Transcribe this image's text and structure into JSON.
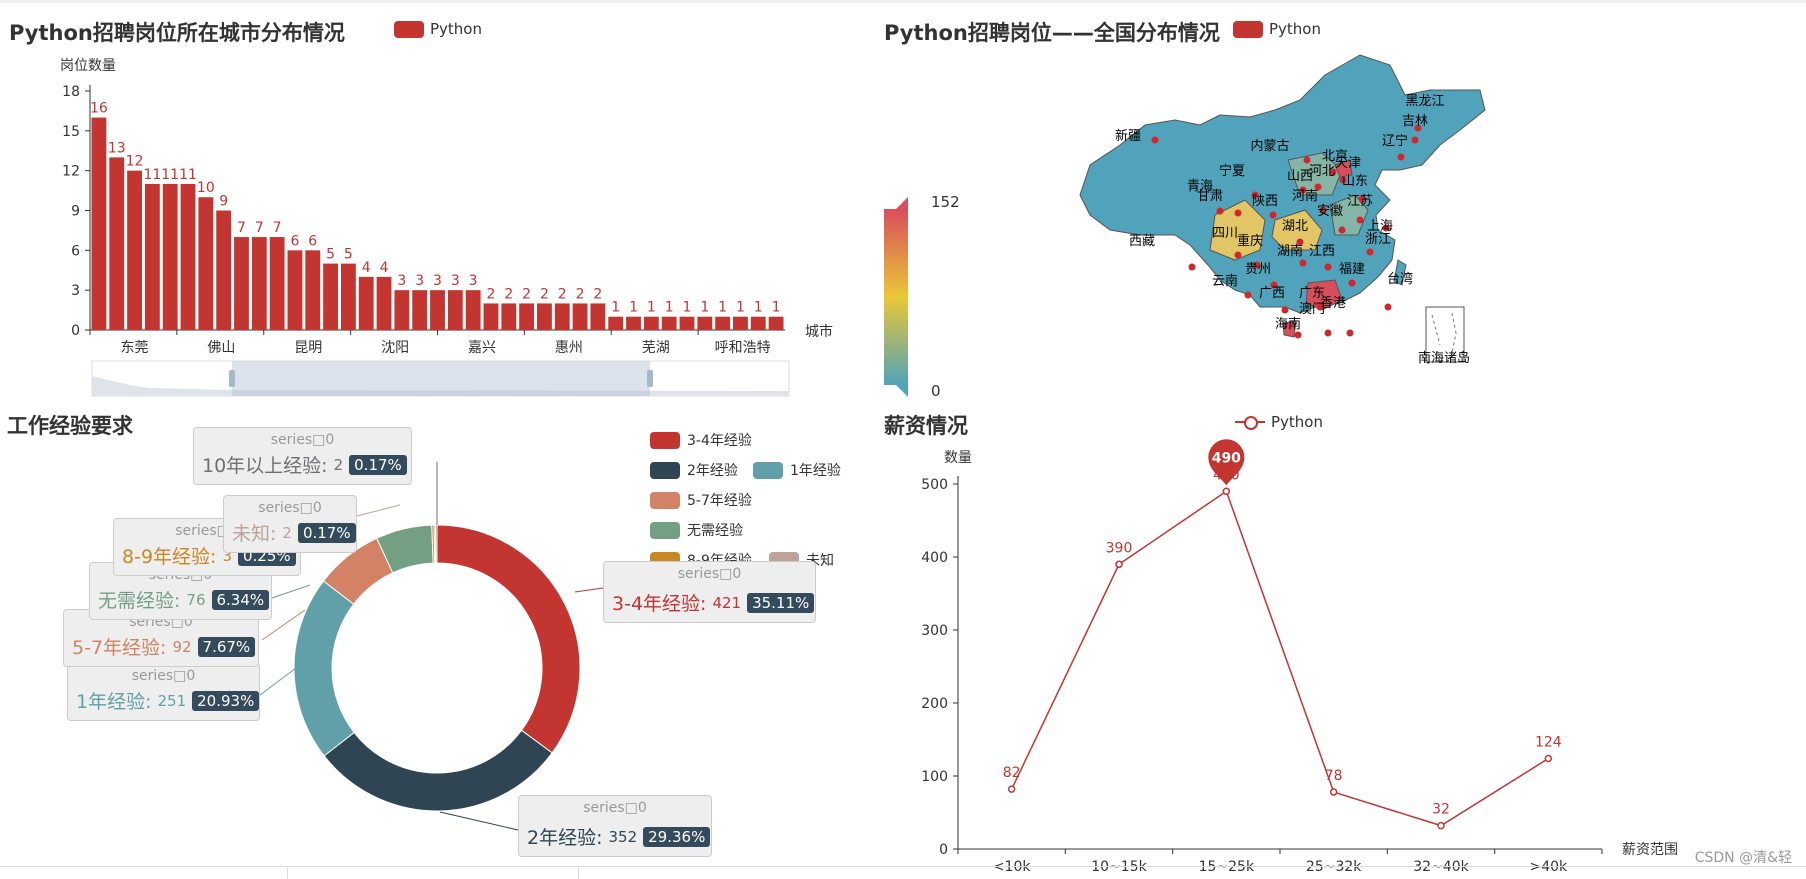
{
  "header": {},
  "charts": {
    "city_bar": {
      "title": "Python招聘岗位所在城市分布情况",
      "legend": "Python",
      "ylabel": "岗位数量",
      "xlabel": "城市"
    },
    "map": {
      "title": "Python招聘岗位——全国分布情况",
      "legend": "Python",
      "visual_max": "152",
      "visual_min": "0",
      "south_sea_label": "南海诸岛",
      "provinces": [
        "新疆",
        "西藏",
        "青海",
        "甘肃",
        "宁夏",
        "内蒙古",
        "黑龙江",
        "吉林",
        "辽宁",
        "北京",
        "天津",
        "河北",
        "山西",
        "山东",
        "陕西",
        "河南",
        "四川",
        "重庆",
        "湖北",
        "安徽",
        "江苏",
        "上海",
        "浙江",
        "湖南",
        "江西",
        "福建",
        "贵州",
        "云南",
        "广西",
        "广东",
        "台湾",
        "香港",
        "澳门",
        "海南"
      ]
    },
    "exp_pie": {
      "title": "工作经验要求"
    },
    "salary_line": {
      "title": "薪资情况",
      "legend": "Python",
      "ylabel": "数量",
      "xlabel": "薪资范围",
      "max_marker": "490"
    }
  },
  "pie_tooltips": {
    "series_label": "series□0"
  },
  "watermark": "CSDN @清&轻",
  "colors": {
    "red": "#c23531",
    "navy": "#2f4554",
    "teal": "#61a0a8",
    "orange": "#d48265",
    "green": "#749f83",
    "amber": "#ca8622",
    "pink": "#bda29a",
    "grey": "#6e7074"
  },
  "chart_data": [
    {
      "type": "bar",
      "title": "Python招聘岗位所在城市分布情况",
      "ylabel": "岗位数量",
      "xlabel": "城市",
      "ylim": [
        0,
        18
      ],
      "yticks": [
        0,
        3,
        6,
        9,
        12,
        15,
        18
      ],
      "categories_visible": [
        "东莞",
        "佛山",
        "昆明",
        "沈阳",
        "嘉兴",
        "惠州",
        "芜湖",
        "呼和浩特"
      ],
      "series": [
        {
          "name": "Python",
          "values": [
            16,
            13,
            12,
            11,
            11,
            11,
            10,
            9,
            7,
            7,
            7,
            6,
            6,
            5,
            5,
            4,
            4,
            3,
            3,
            3,
            3,
            3,
            2,
            2,
            2,
            2,
            2,
            2,
            2,
            1,
            1,
            1,
            1,
            1,
            1,
            1,
            1,
            1,
            1
          ]
        }
      ],
      "legend": "top"
    },
    {
      "type": "map",
      "title": "Python招聘岗位——全国分布情况",
      "visual_range": [
        0,
        152
      ],
      "series": [
        {
          "name": "Python"
        }
      ]
    },
    {
      "type": "pie",
      "title": "工作经验要求",
      "series": [
        {
          "name": "series□0",
          "data": [
            {
              "name": "3-4年经验",
              "value": 421,
              "percent": "35.11%"
            },
            {
              "name": "2年经验",
              "value": 352,
              "percent": "29.36%"
            },
            {
              "name": "1年经验",
              "value": 251,
              "percent": "20.93%"
            },
            {
              "name": "5-7年经验",
              "value": 92,
              "percent": "7.67%"
            },
            {
              "name": "无需经验",
              "value": 76,
              "percent": "6.34%"
            },
            {
              "name": "8-9年经验",
              "value": 3,
              "percent": "0.25%"
            },
            {
              "name": "未知",
              "value": 2,
              "percent": "0.17%"
            },
            {
              "name": "10年以上经验",
              "value": 2,
              "percent": "0.17%"
            }
          ]
        }
      ],
      "legend": "right"
    },
    {
      "type": "line",
      "title": "薪资情况",
      "ylabel": "数量",
      "xlabel": "薪资范围",
      "ylim": [
        0,
        500
      ],
      "yticks": [
        0,
        100,
        200,
        300,
        400,
        500
      ],
      "categories": [
        "<10k",
        "10~15k",
        "15~25k",
        "25~32k",
        "32~40k",
        ">40k"
      ],
      "series": [
        {
          "name": "Python",
          "values": [
            82,
            390,
            490,
            78,
            32,
            124
          ]
        }
      ],
      "max_point": {
        "category": "15~25k",
        "value": 490
      }
    }
  ]
}
